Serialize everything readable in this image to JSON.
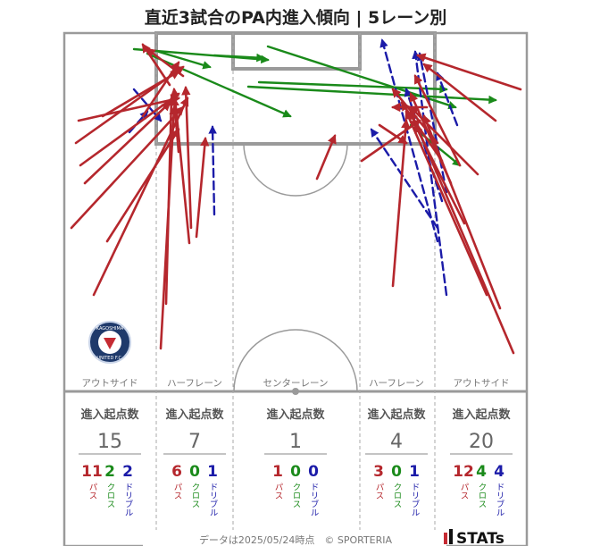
{
  "title": "直近3試合のPA内進入傾向 | 5レーン別",
  "lanes": [
    {
      "name": "アウトサイド",
      "header": "進入起点数",
      "total": "15",
      "pass": "11",
      "cross": "2",
      "dribble": "2"
    },
    {
      "name": "ハーフレーン",
      "header": "進入起点数",
      "total": "7",
      "pass": "6",
      "cross": "0",
      "dribble": "1"
    },
    {
      "name": "センターレーン",
      "header": "進入起点数",
      "total": "1",
      "pass": "1",
      "cross": "0",
      "dribble": "0"
    },
    {
      "name": "ハーフレーン",
      "header": "進入起点数",
      "total": "4",
      "pass": "3",
      "cross": "0",
      "dribble": "1"
    },
    {
      "name": "アウトサイド",
      "header": "進入起点数",
      "total": "20",
      "pass": "12",
      "cross": "4",
      "dribble": "4"
    }
  ],
  "labels": {
    "pass": "パス",
    "cross": "クロス",
    "dribble": "ドリブル"
  },
  "colors": {
    "pass": "#b5272d",
    "cross": "#1a8a1a",
    "dribble": "#1b1ba8",
    "pitch_line": "#9a9a9a"
  },
  "badge": {
    "top": "KAGOSHIMA",
    "bottom": "UNITED F.C."
  },
  "footer": {
    "note": "データは2025/05/24時点　© SPORTERIA",
    "brand": "STATs"
  },
  "chart_data": {
    "type": "pitch-map",
    "categories": [
      "アウトサイド",
      "ハーフレーン",
      "センターレーン",
      "ハーフレーン",
      "アウトサイド"
    ],
    "series": [
      {
        "name": "パス",
        "values": [
          11,
          6,
          1,
          3,
          12
        ]
      },
      {
        "name": "クロス",
        "values": [
          2,
          0,
          0,
          0,
          4
        ]
      },
      {
        "name": "ドリブル",
        "values": [
          2,
          1,
          0,
          1,
          4
        ]
      }
    ],
    "totals": [
      15,
      7,
      1,
      4,
      20
    ]
  }
}
